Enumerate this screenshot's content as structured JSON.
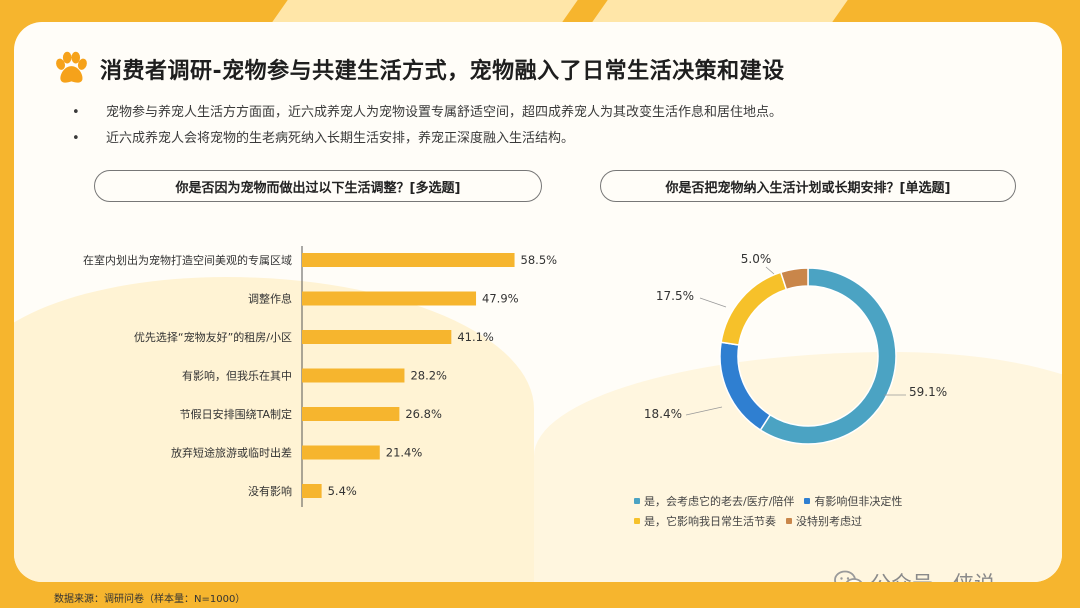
{
  "title": "消费者调研-宠物参与共建生活方式，宠物融入了日常生活决策和建设",
  "bullets": [
    "宠物参与养宠人生活方方面面，近六成养宠人为宠物设置专属舒适空间，超四成养宠人为其改变生活作息和居住地点。",
    "近六成养宠人会将宠物的生老病死纳入长期生活安排，养宠正深度融入生活结构。"
  ],
  "bullet_marker": "•",
  "colors": {
    "accent": "#f6b52e",
    "bar": "#f6b52e",
    "teal": "#4ba3c3",
    "blue": "#2f7fd1",
    "yellow": "#f6c12a",
    "brown": "#c9864a"
  },
  "chart_data": [
    {
      "type": "bar",
      "orientation": "horizontal",
      "title": "你是否因为宠物而做出过以下生活调整？[多选题]",
      "categories": [
        "在室内划出为宠物打造空间美观的专属区域",
        "调整作息",
        "优先选择“宠物友好”的租房/小区",
        "有影响，但我乐在其中",
        "节假日安排围绕TA制定",
        "放弃短途旅游或临时出差",
        "没有影响"
      ],
      "values": [
        58.5,
        47.9,
        41.1,
        28.2,
        26.8,
        21.4,
        5.4
      ],
      "value_labels": [
        "58.5%",
        "47.9%",
        "41.1%",
        "28.2%",
        "26.8%",
        "21.4%",
        "5.4%"
      ],
      "unit": "%",
      "xlim": [
        0,
        60
      ]
    },
    {
      "type": "pie",
      "donut": true,
      "title": "你是否把宠物纳入生活计划或长期安排？[单选题]",
      "categories": [
        "是，会考虑它的老去/医疗/陪伴",
        "有影响但非决定性",
        "是，它影响我日常生活节奏",
        "没特别考虑过"
      ],
      "values": [
        59.1,
        18.4,
        17.5,
        5.0
      ],
      "value_labels": [
        "59.1%",
        "18.4%",
        "17.5%",
        "5.0%"
      ],
      "colors": [
        "#4ba3c3",
        "#2f7fd1",
        "#f6c12a",
        "#c9864a"
      ],
      "legend_position": "bottom"
    }
  ],
  "watermark": {
    "text": "公众号 · 侠说",
    "icon": "wechat-icon"
  },
  "footer": "数据来源：调研问卷（样本量：N=1000）"
}
